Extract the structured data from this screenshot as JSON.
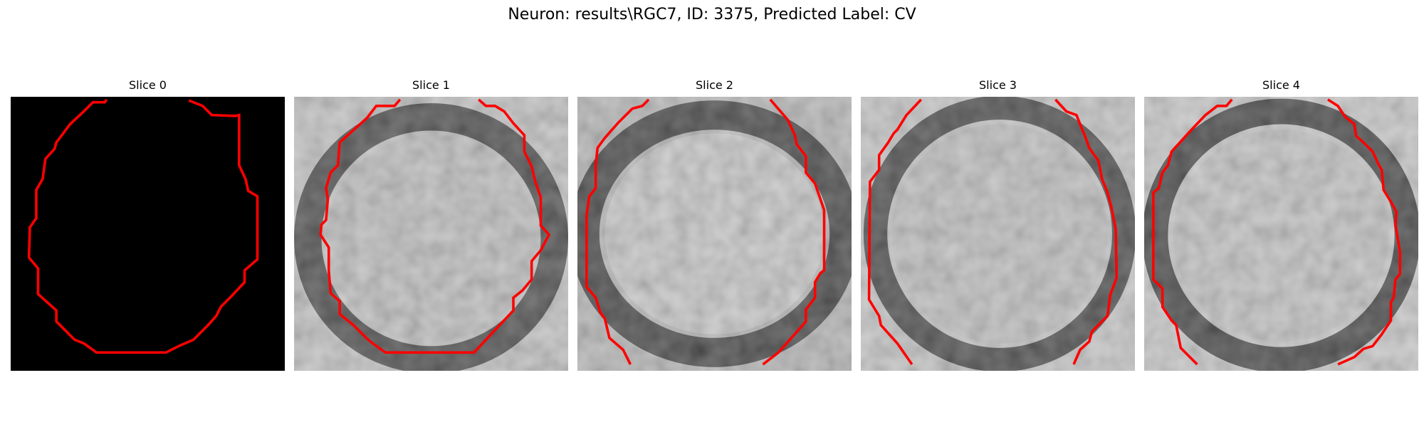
{
  "figure": {
    "title": "Neuron: results\\RGC7, ID: 3375, Predicted Label: CV"
  },
  "slices": [
    {
      "label": "Slice 0",
      "kind": "mask"
    },
    {
      "label": "Slice 1",
      "kind": "image"
    },
    {
      "label": "Slice 2",
      "kind": "image"
    },
    {
      "label": "Slice 3",
      "kind": "image"
    },
    {
      "label": "Slice 4",
      "kind": "image"
    }
  ],
  "colors": {
    "contour": "#ff0000",
    "mask_background": "#000000"
  }
}
